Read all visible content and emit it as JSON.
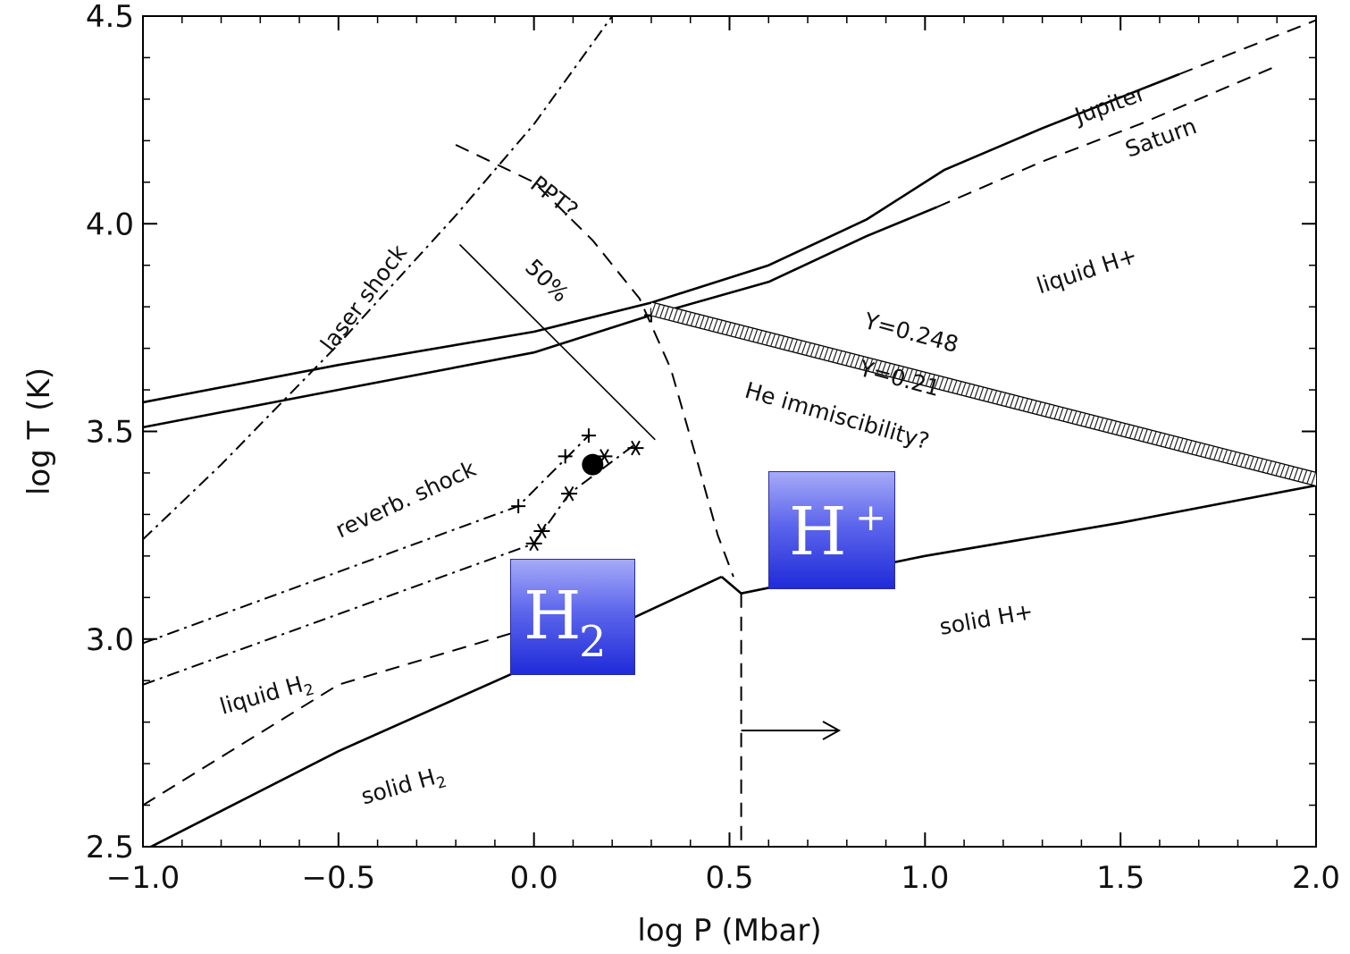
{
  "chart_data": {
    "type": "line",
    "title": "",
    "xlabel": "log P (Mbar)",
    "ylabel": "log T (K)",
    "xlim": [
      -1.0,
      2.0
    ],
    "ylim": [
      2.5,
      4.5
    ],
    "xticks": [
      "−1.0",
      "−0.5",
      "0.0",
      "0.5",
      "1.0",
      "1.5",
      "2.0"
    ],
    "yticks": [
      "2.5",
      "3.0",
      "3.5",
      "4.0",
      "4.5"
    ],
    "series": [
      {
        "name": "Jupiter",
        "style": "solid",
        "points": [
          [
            -1.0,
            3.57
          ],
          [
            -0.5,
            3.66
          ],
          [
            0.0,
            3.74
          ],
          [
            0.3,
            3.81
          ],
          [
            0.6,
            3.9
          ],
          [
            0.85,
            4.01
          ],
          [
            1.05,
            4.13
          ],
          [
            1.3,
            4.23
          ],
          [
            1.65,
            4.36
          ]
        ]
      },
      {
        "name": "",
        "style": "dashed",
        "points": [
          [
            1.65,
            4.36
          ],
          [
            2.0,
            4.49
          ]
        ]
      },
      {
        "name": "Saturn",
        "style": "solid",
        "points": [
          [
            -1.0,
            3.51
          ],
          [
            -0.5,
            3.6
          ],
          [
            0.0,
            3.69
          ],
          [
            0.3,
            3.78
          ],
          [
            0.6,
            3.86
          ],
          [
            0.85,
            3.97
          ],
          [
            1.03,
            4.04
          ]
        ]
      },
      {
        "name": "",
        "style": "dashed",
        "points": [
          [
            1.03,
            4.04
          ],
          [
            1.3,
            4.15
          ],
          [
            1.55,
            4.24
          ],
          [
            1.9,
            4.38
          ]
        ]
      },
      {
        "name": "laser shock",
        "style": "dash-dot",
        "points": [
          [
            -1.0,
            3.24
          ],
          [
            -0.8,
            3.42
          ],
          [
            -0.5,
            3.71
          ],
          [
            -0.2,
            4.02
          ],
          [
            0.0,
            4.24
          ],
          [
            0.2,
            4.5
          ]
        ]
      },
      {
        "name": "PPT?",
        "style": "dashed",
        "points": [
          [
            -0.2,
            4.19
          ],
          [
            0.0,
            4.1
          ],
          [
            0.15,
            3.96
          ],
          [
            0.27,
            3.82
          ],
          [
            0.35,
            3.65
          ],
          [
            0.42,
            3.42
          ],
          [
            0.47,
            3.25
          ],
          [
            0.51,
            3.15
          ]
        ]
      },
      {
        "name": "50%",
        "style": "thin-solid",
        "points": [
          [
            -0.19,
            3.95
          ],
          [
            0.31,
            3.48
          ]
        ]
      },
      {
        "name": "Y=0.248",
        "style": "solid",
        "points": [
          [
            0.3,
            3.81
          ],
          [
            2.0,
            3.4
          ]
        ]
      },
      {
        "name": "Y=0.21",
        "style": "solid",
        "points": [
          [
            0.3,
            3.78
          ],
          [
            2.0,
            3.37
          ]
        ]
      },
      {
        "name": "reverb. shock",
        "style": "dash-dot",
        "points": [
          [
            -1.0,
            2.99
          ],
          [
            -0.04,
            3.32
          ],
          [
            0.14,
            3.49
          ]
        ]
      },
      {
        "name": "",
        "style": "dash-dot",
        "points": [
          [
            -1.0,
            2.89
          ],
          [
            0.0,
            3.23
          ],
          [
            0.09,
            3.35
          ],
          [
            0.26,
            3.47
          ]
        ]
      },
      {
        "name": "liquid H2",
        "style": "dashed",
        "points": [
          [
            -1.0,
            2.6
          ],
          [
            -0.5,
            2.89
          ],
          [
            0.0,
            3.03
          ]
        ]
      },
      {
        "name": "solid H2",
        "style": "solid",
        "points": [
          [
            -1.0,
            2.49
          ],
          [
            -0.5,
            2.73
          ],
          [
            0.0,
            2.94
          ],
          [
            0.48,
            3.15
          ]
        ]
      },
      {
        "name": "solid H+",
        "style": "solid",
        "points": [
          [
            0.48,
            3.15
          ],
          [
            0.53,
            3.11
          ],
          [
            1.0,
            3.2
          ],
          [
            1.5,
            3.28
          ],
          [
            2.0,
            3.37
          ]
        ]
      },
      {
        "name": "",
        "style": "dashed",
        "points": [
          [
            0.53,
            3.11
          ],
          [
            0.53,
            2.5
          ]
        ]
      }
    ],
    "markers": {
      "asterisks": [
        [
          0.0,
          3.23
        ],
        [
          0.02,
          3.26
        ],
        [
          0.09,
          3.35
        ],
        [
          0.18,
          3.44
        ],
        [
          0.26,
          3.46
        ]
      ],
      "crosses": [
        [
          -0.04,
          3.32
        ],
        [
          0.08,
          3.44
        ],
        [
          0.14,
          3.49
        ],
        [
          0.3,
          3.78
        ]
      ],
      "filled_circle": [
        0.15,
        3.42
      ]
    },
    "arrow": {
      "from": [
        0.53,
        2.78
      ],
      "to": [
        0.78,
        2.78
      ]
    },
    "annotations": [
      {
        "text": "Jupiter",
        "x": 1.48,
        "y": 4.27,
        "rotate": -20
      },
      {
        "text": "Saturn",
        "x": 1.61,
        "y": 4.19,
        "rotate": -20
      },
      {
        "text": "PPT?",
        "x": 0.04,
        "y": 4.05,
        "rotate": 38
      },
      {
        "text": "laser shock",
        "x": -0.42,
        "y": 3.81,
        "rotate": -53
      },
      {
        "text": "50%",
        "x": 0.02,
        "y": 3.85,
        "rotate": 44
      },
      {
        "text": "liquid H+",
        "x": 1.42,
        "y": 3.87,
        "rotate": -18
      },
      {
        "text": "Y=0.248",
        "x": 0.96,
        "y": 3.72,
        "rotate": 15
      },
      {
        "text": "Y=0.21",
        "x": 0.93,
        "y": 3.61,
        "rotate": 15
      },
      {
        "text": "He immiscibility?",
        "x": 0.77,
        "y": 3.52,
        "rotate": 16
      },
      {
        "text": "reverb. shock",
        "x": -0.32,
        "y": 3.32,
        "rotate": -25
      },
      {
        "text": "solid H+",
        "x": 1.16,
        "y": 3.03,
        "rotate": -10
      },
      {
        "text": "solid H",
        "sub": "2",
        "x": -0.33,
        "y": 2.63,
        "rotate": -16
      },
      {
        "text": "liquid H",
        "sub": "2",
        "x": -0.68,
        "y": 2.85,
        "rotate": -16
      }
    ]
  },
  "overlays": {
    "h2_box": {
      "main": "H",
      "sub": "2"
    },
    "hplus_box": {
      "main": "H",
      "sup": "+"
    }
  }
}
